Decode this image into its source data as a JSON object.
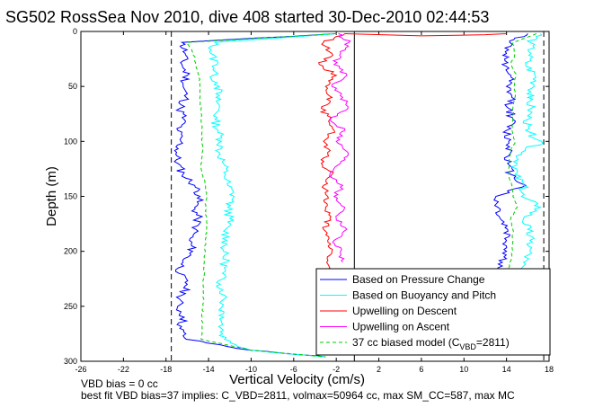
{
  "chart_data": {
    "type": "line",
    "title": "SG502 RossSea Nov 2010, dive 408 started 30-Dec-2010 02:44:53",
    "xlabel": "Vertical Velocity (cm/s)",
    "ylabel": "Depth (m)",
    "xlim": [
      -26,
      18
    ],
    "ylim": [
      300,
      0
    ],
    "y_reversed": true,
    "xticks": [
      -26,
      -22,
      -18,
      -14,
      -10,
      -6,
      -2,
      2,
      6,
      10,
      14,
      18
    ],
    "xtick_labels": [
      "-26",
      "-22",
      "-18",
      "-14",
      "-10",
      "-6",
      "-2",
      "2",
      "6",
      "10",
      "14",
      "18"
    ],
    "yticks": [
      0,
      50,
      100,
      150,
      200,
      250,
      300
    ],
    "ytick_labels": [
      "0",
      "50",
      "100",
      "150",
      "200",
      "250",
      "300"
    ],
    "grid": false,
    "legend_position": "bottom-right",
    "vertical_reference_lines": [
      {
        "x": -17.5,
        "style": "dashed",
        "color": "#000000"
      },
      {
        "x": 17.5,
        "style": "dashed",
        "color": "#000000"
      },
      {
        "x": -0.3,
        "style": "solid",
        "color": "#000000",
        "depth_range": [
          0,
          300
        ]
      }
    ],
    "series": [
      {
        "name": "Based on Pressure Change",
        "color": "#0000ff",
        "y": [
          2,
          10,
          20,
          30,
          40,
          50,
          60,
          70,
          80,
          90,
          100,
          110,
          120,
          130,
          140,
          150,
          160,
          170,
          180,
          190,
          200,
          210,
          220,
          230,
          240,
          250,
          260,
          270,
          280,
          290,
          296
        ],
        "x_desc": [
          -2,
          -16.5,
          -16.2,
          -16.5,
          -16.0,
          -16.4,
          -16.1,
          -16.7,
          -16.3,
          -16.9,
          -16.6,
          -17.0,
          -16.9,
          -16.4,
          -15.3,
          -14.8,
          -15.3,
          -15.0,
          -15.2,
          -15.8,
          -15.5,
          -16.4,
          -16.8,
          -16.0,
          -16.5,
          -16.9,
          -16.3,
          -16.7,
          -16.1,
          -10,
          -3
        ],
        "x_asc": [
          16,
          14.3,
          14.0,
          13.6,
          14.4,
          14.0,
          14.5,
          14.2,
          14.6,
          14.0,
          14.2,
          14.4,
          14.1,
          14.4,
          15.8,
          13.0,
          13.2,
          13.4,
          14.1,
          14.0,
          14.0,
          13.6,
          13.0
        ]
      },
      {
        "name": "Based on Buoyancy and Pitch",
        "color": "#00ffff",
        "y": [
          2,
          10,
          20,
          30,
          40,
          50,
          60,
          70,
          80,
          90,
          100,
          110,
          120,
          130,
          140,
          150,
          160,
          170,
          180,
          190,
          200,
          210,
          220,
          230,
          240,
          250,
          260,
          270,
          280,
          290,
          296
        ],
        "x_desc": [
          -2,
          -13.4,
          -13.8,
          -13.2,
          -13.6,
          -13.0,
          -13.3,
          -13.0,
          -13.4,
          -13.1,
          -12.8,
          -13.0,
          -12.6,
          -12.4,
          -12.2,
          -11.6,
          -12.2,
          -12.0,
          -12.4,
          -12.3,
          -12.6,
          -12.4,
          -12.7,
          -12.9,
          -12.5,
          -12.7,
          -12.6,
          -12.8,
          -12.5,
          -10,
          -3
        ],
        "x_asc": [
          17.2,
          16.2,
          16.3,
          15.8,
          16.7,
          16.6,
          16.0,
          16.3,
          16.0,
          15.8,
          17.3,
          15.4,
          15.0,
          14.8,
          15.6,
          15.4,
          17.2,
          15.6,
          16.0,
          16.2,
          16.2,
          15.6,
          15.0
        ]
      },
      {
        "name": "Upwelling on Descent",
        "color": "#ff0000",
        "y": [
          2,
          10,
          20,
          30,
          40,
          50,
          60,
          70,
          80,
          90,
          100,
          110,
          120,
          130,
          140,
          150,
          160,
          170,
          180,
          190,
          200,
          210,
          220,
          230,
          240,
          250,
          260,
          270,
          280,
          290
        ],
        "x": [
          -1.2,
          -3.2,
          -2.4,
          -3.6,
          -2.0,
          -3.0,
          -2.4,
          -3.4,
          -2.6,
          -2.2,
          -3.2,
          -2.8,
          -3.4,
          -2.4,
          -3.2,
          -2.8,
          -3.0,
          -2.6,
          -3.2,
          -2.8,
          -2.4,
          -2.9,
          -2.7,
          -3.1,
          -2.6,
          -3.0,
          -2.8,
          -3.1,
          -2.6,
          -2.8
        ]
      },
      {
        "name": "Upwelling on Ascent",
        "color": "#ff00ff",
        "y": [
          2,
          10,
          20,
          30,
          40,
          50,
          60,
          70,
          80,
          90,
          100,
          110,
          120,
          130,
          140,
          150,
          160,
          170,
          180,
          190,
          200,
          210
        ],
        "x": [
          -1.8,
          -0.8,
          -1.6,
          -2.2,
          -1.0,
          -2.4,
          -1.4,
          -0.9,
          -2.6,
          -1.2,
          -2.0,
          -0.9,
          -1.6,
          -2.6,
          -1.4,
          -2.2,
          -1.2,
          -2.0,
          -1.0,
          -2.2,
          -1.6,
          -1.4
        ]
      },
      {
        "name": "37 cc biased model (C_VBD=2811)",
        "color": "#00cc00",
        "dashed": true,
        "y": [
          2,
          10,
          20,
          30,
          40,
          50,
          60,
          70,
          80,
          90,
          100,
          110,
          120,
          130,
          140,
          150,
          160,
          170,
          180,
          190,
          200,
          210,
          220,
          230,
          240,
          250,
          260,
          270,
          280,
          290,
          296
        ],
        "x_desc": [
          -2,
          -16.0,
          -15.4,
          -15.2,
          -14.9,
          -14.8,
          -14.8,
          -14.7,
          -14.7,
          -14.6,
          -14.6,
          -14.6,
          -14.7,
          -14.6,
          -14.3,
          -14.2,
          -14.3,
          -14.2,
          -14.2,
          -14.3,
          -14.3,
          -14.4,
          -14.4,
          -14.5,
          -14.5,
          -14.5,
          -14.6,
          -14.6,
          -14.7,
          -10,
          -3
        ],
        "x_asc": [
          16.8,
          14.6,
          14.8,
          14.4,
          14.9,
          14.7,
          14.8,
          14.6,
          14.6,
          14.5,
          14.8,
          14.3,
          14.3,
          14.2,
          14.5,
          14.6,
          15.0,
          14.4,
          14.6,
          14.6,
          14.6,
          14.3,
          14.2
        ]
      }
    ],
    "legend": {
      "entries": [
        {
          "label": "Based on Pressure Change",
          "color": "#0000ff",
          "dashed": false
        },
        {
          "label": "Based on Buoyancy and Pitch",
          "color": "#00ffff",
          "dashed": false
        },
        {
          "label": "Upwelling on Descent",
          "color": "#ff0000",
          "dashed": false
        },
        {
          "label": "Upwelling on Ascent",
          "color": "#ff00ff",
          "dashed": false
        },
        {
          "label": "37 cc biased model (C",
          "sub": "VBD",
          "suffix": "=2811)",
          "color": "#00cc00",
          "dashed": true
        }
      ]
    }
  },
  "footer": {
    "line1": "VBD bias = 0 cc",
    "line2": "best fit VBD bias=37 implies: C_VBD=2811, volmax=50964 cc, max SM_CC=587, max MC"
  }
}
